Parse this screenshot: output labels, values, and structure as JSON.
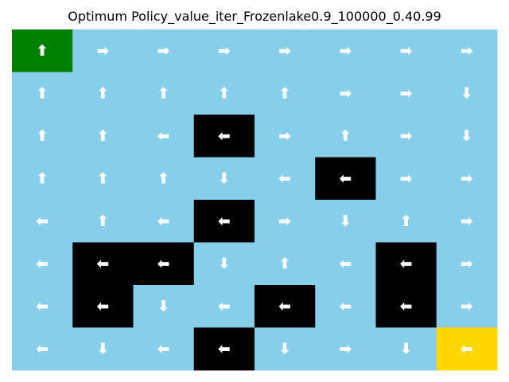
{
  "title": "Optimum Policy_value_iter_Frozenlake0.9_100000_0.40.99",
  "chart_data": {
    "type": "heatmap",
    "title": "Optimum Policy_value_iter_Frozenlake0.9_100000_0.40.99",
    "rows": 8,
    "cols": 8,
    "arrow_glyphs": {
      "L": "⬅",
      "R": "➡",
      "U": "⬆",
      "D": "⬇"
    },
    "colors": {
      "frozen": "#87ceeb",
      "hole": "#000000",
      "start": "#008000",
      "goal": "#ffd700",
      "arrow": "#ffffff"
    },
    "tiles": [
      [
        "S",
        "F",
        "F",
        "F",
        "F",
        "F",
        "F",
        "F"
      ],
      [
        "F",
        "F",
        "F",
        "F",
        "F",
        "F",
        "F",
        "F"
      ],
      [
        "F",
        "F",
        "F",
        "H",
        "F",
        "F",
        "F",
        "F"
      ],
      [
        "F",
        "F",
        "F",
        "F",
        "F",
        "H",
        "F",
        "F"
      ],
      [
        "F",
        "F",
        "F",
        "H",
        "F",
        "F",
        "F",
        "F"
      ],
      [
        "F",
        "H",
        "H",
        "F",
        "F",
        "F",
        "H",
        "F"
      ],
      [
        "F",
        "H",
        "F",
        "F",
        "H",
        "F",
        "H",
        "F"
      ],
      [
        "F",
        "F",
        "F",
        "H",
        "F",
        "F",
        "F",
        "G"
      ]
    ],
    "policy": [
      [
        "U",
        "R",
        "R",
        "R",
        "R",
        "R",
        "R",
        "R"
      ],
      [
        "U",
        "U",
        "U",
        "U",
        "U",
        "R",
        "R",
        "D"
      ],
      [
        "U",
        "U",
        "L",
        "L",
        "R",
        "U",
        "R",
        "D"
      ],
      [
        "U",
        "U",
        "U",
        "D",
        "L",
        "L",
        "R",
        "R"
      ],
      [
        "L",
        "U",
        "L",
        "L",
        "R",
        "D",
        "U",
        "R"
      ],
      [
        "L",
        "L",
        "L",
        "D",
        "U",
        "L",
        "L",
        "R"
      ],
      [
        "L",
        "L",
        "D",
        "L",
        "L",
        "L",
        "L",
        "R"
      ],
      [
        "L",
        "D",
        "L",
        "L",
        "D",
        "R",
        "D",
        "L"
      ]
    ]
  }
}
